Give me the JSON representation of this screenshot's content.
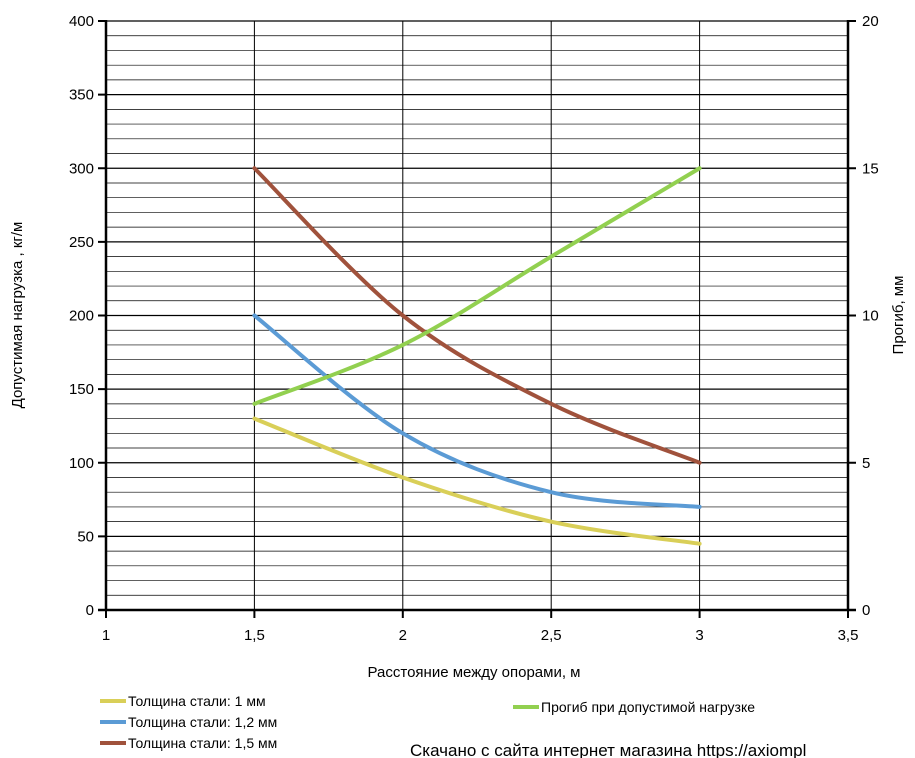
{
  "chart_data": {
    "type": "line",
    "xlabel": "Расстояние между опорами, м",
    "ylabel_left": "Допустимая нагрузка , кг/м",
    "ylabel_right": "Прогиб, мм",
    "xlim": [
      1,
      3.5
    ],
    "ylim_left": [
      0,
      400
    ],
    "ylim_right": [
      0,
      20
    ],
    "x_ticks": [
      "1",
      "1,5",
      "2",
      "2,5",
      "3",
      "3,5"
    ],
    "x_tick_values": [
      1,
      1.5,
      2,
      2.5,
      3,
      3.5
    ],
    "y_left_ticks": [
      "0",
      "50",
      "100",
      "150",
      "200",
      "250",
      "300",
      "350",
      "400"
    ],
    "y_left_tick_values": [
      0,
      50,
      100,
      150,
      200,
      250,
      300,
      350,
      400
    ],
    "y_right_ticks": [
      "0",
      "5",
      "10",
      "15",
      "20"
    ],
    "y_right_tick_values": [
      0,
      5,
      10,
      15,
      20
    ],
    "minor_gridline_step_left": 10,
    "grid": true,
    "series": [
      {
        "name": "Толщина стали: 1 мм",
        "axis": "left",
        "color": "#d9cf58",
        "x": [
          1.5,
          2,
          2.5,
          3
        ],
        "values": [
          130,
          90,
          60,
          45
        ]
      },
      {
        "name": "Толщина стали: 1,2 мм",
        "axis": "left",
        "color": "#5b9bd5",
        "x": [
          1.5,
          2,
          2.5,
          3
        ],
        "values": [
          200,
          120,
          80,
          70
        ]
      },
      {
        "name": "Толщина стали: 1,5 мм",
        "axis": "left",
        "color": "#a0523c",
        "x": [
          1.5,
          2,
          2.5,
          3
        ],
        "values": [
          300,
          200,
          140,
          100
        ]
      },
      {
        "name": "Прогиб при допустимой нагрузке",
        "axis": "right",
        "color": "#92d050",
        "x": [
          1.5,
          2,
          2.5,
          3
        ],
        "values": [
          7,
          9,
          12,
          15
        ]
      }
    ]
  },
  "watermark": "Скачано с сайта интернет магазина https://axiompl"
}
